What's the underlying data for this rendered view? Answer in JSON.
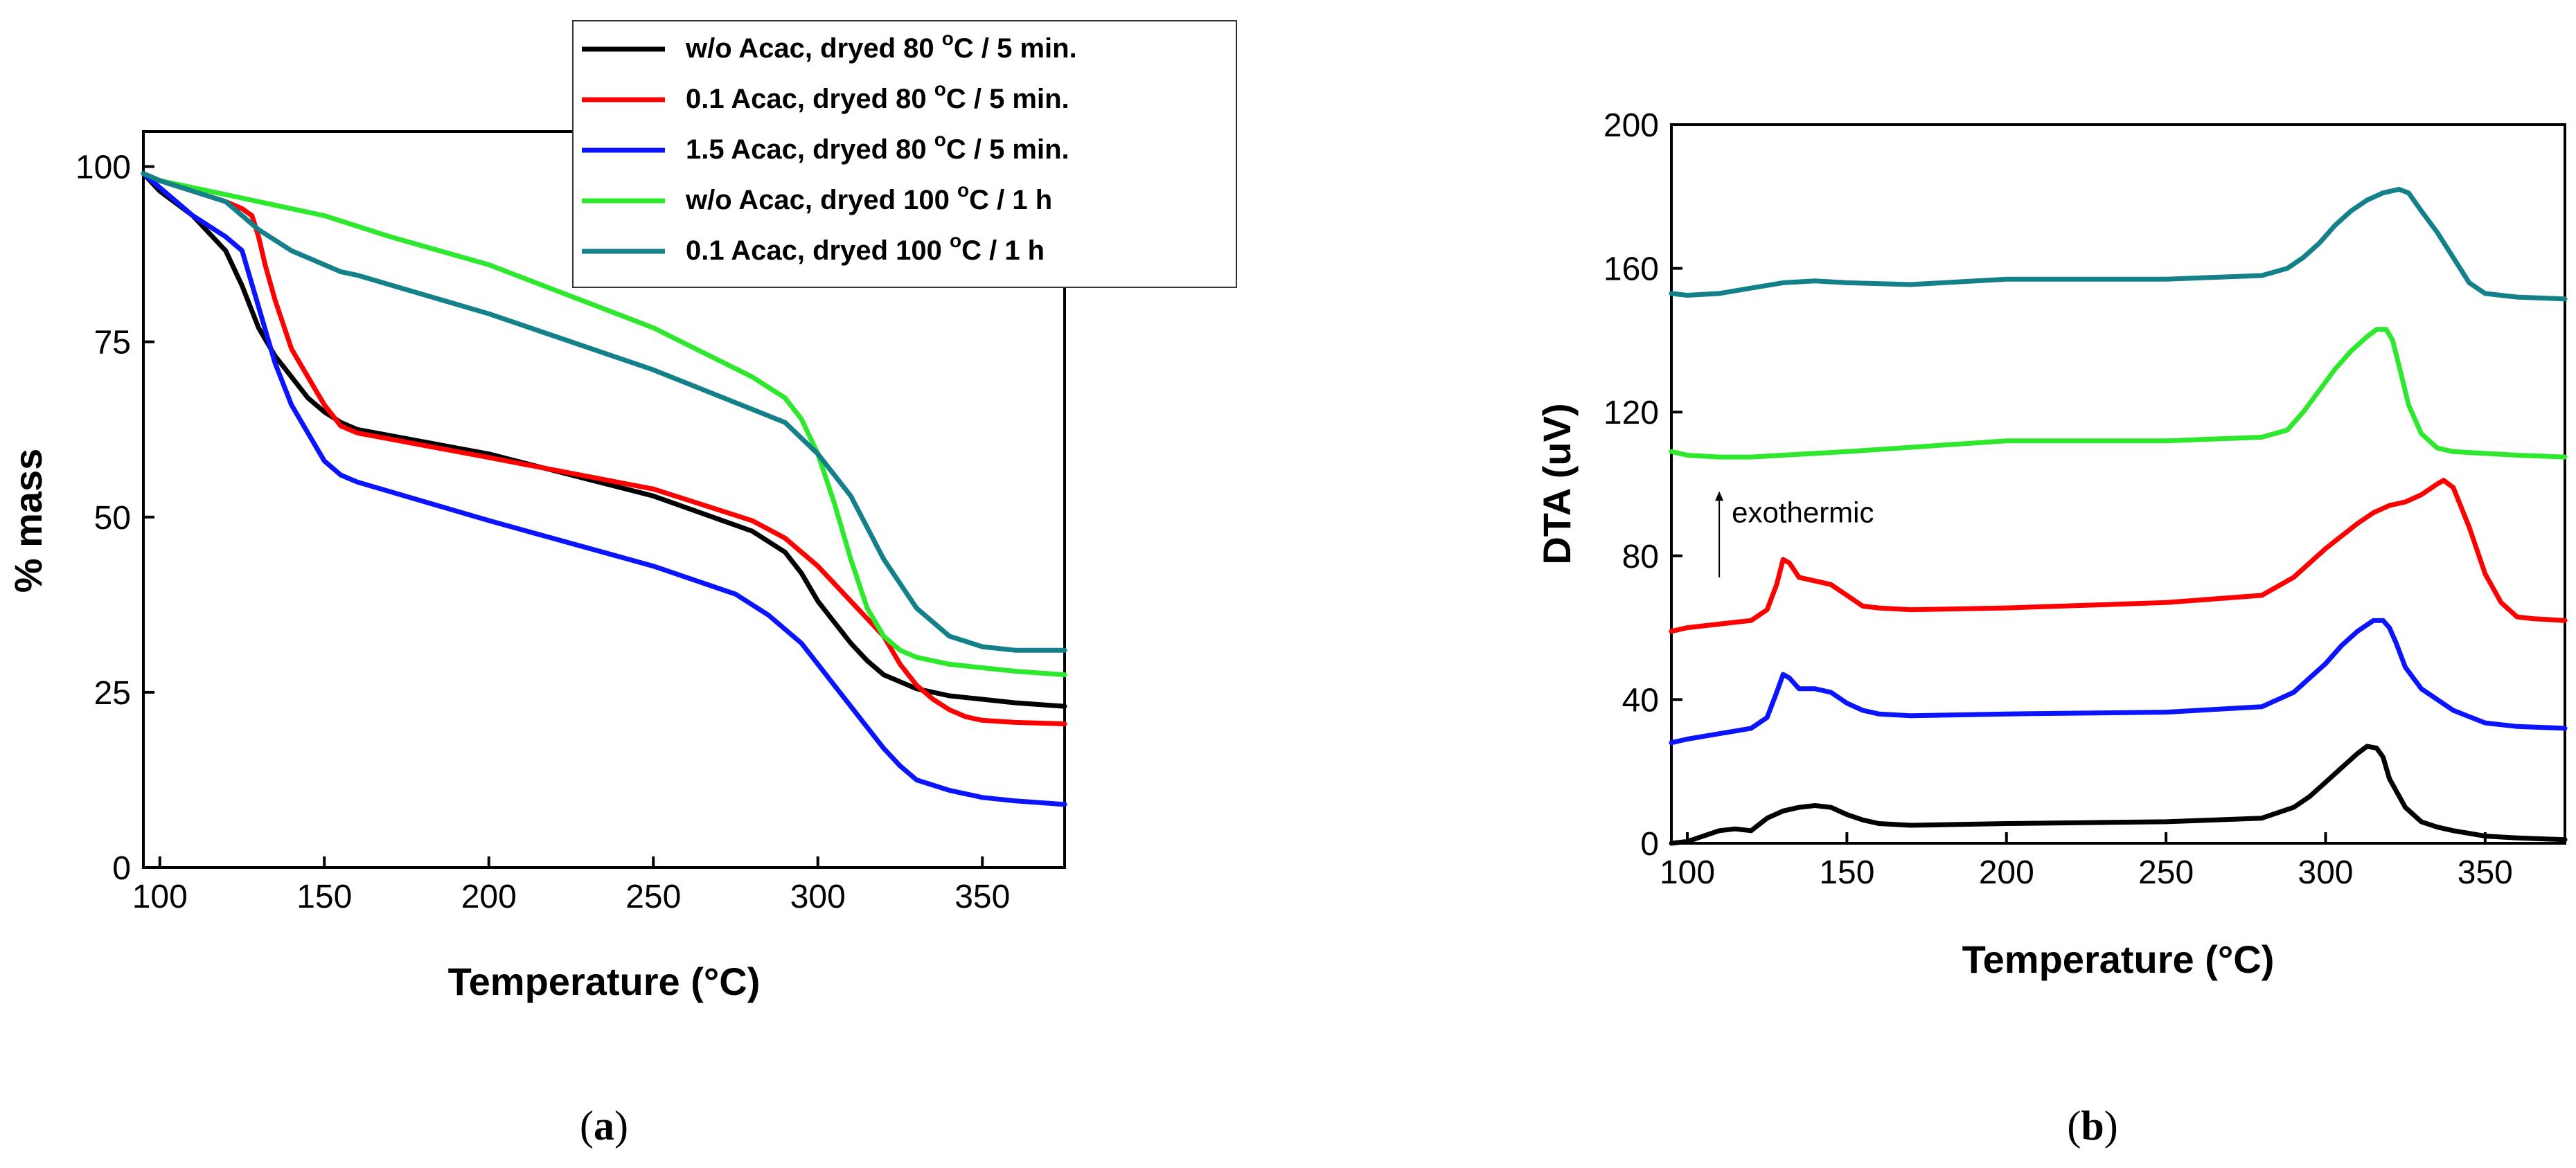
{
  "colors": {
    "black": "#000000",
    "red": "#ff0000",
    "blue": "#0a14ff",
    "green": "#2de82d",
    "teal": "#13808a"
  },
  "chart_data": [
    {
      "id": "a",
      "type": "line",
      "caption": "a",
      "xlabel": "Temperature (°C)",
      "ylabel": "% mass",
      "xlim": [
        95,
        375
      ],
      "ylim": [
        0,
        105
      ],
      "xticks": [
        100,
        150,
        200,
        250,
        300,
        350
      ],
      "yticks": [
        0,
        25,
        50,
        75,
        100
      ],
      "legend_position": "top-right",
      "series": [
        {
          "name": "w/o Acac, dryed 80 °C / 5 min.",
          "legend_main": "w/o Acac, dryed 80 ",
          "legend_sup": "o",
          "legend_tail": "C / 5 min.",
          "color_key": "black",
          "x": [
            95,
            100,
            110,
            120,
            125,
            130,
            135,
            140,
            145,
            150,
            155,
            160,
            200,
            250,
            280,
            290,
            295,
            300,
            305,
            310,
            315,
            320,
            325,
            330,
            340,
            350,
            360,
            375
          ],
          "y": [
            99,
            96.5,
            93,
            88,
            83,
            77,
            73,
            70,
            67,
            65,
            63.5,
            62.5,
            59,
            53,
            48,
            45,
            42,
            38,
            35,
            32,
            29.5,
            27.5,
            26.5,
            25.5,
            24.5,
            24,
            23.5,
            23
          ]
        },
        {
          "name": "0.1 Acac, dryed 80 °C / 5 min.",
          "legend_main": "0.1 Acac, dryed 80 ",
          "legend_sup": "o",
          "legend_tail": "C / 5 min.",
          "color_key": "red",
          "x": [
            95,
            100,
            110,
            120,
            125,
            128,
            130,
            132,
            135,
            140,
            145,
            150,
            155,
            160,
            200,
            250,
            280,
            290,
            300,
            310,
            320,
            325,
            330,
            335,
            340,
            345,
            350,
            360,
            375
          ],
          "y": [
            99,
            98,
            96.5,
            95,
            94,
            93,
            90,
            86,
            81,
            74,
            70,
            66,
            63,
            62,
            58.5,
            54,
            49.5,
            47,
            43,
            38,
            33,
            29,
            26,
            24,
            22.5,
            21.5,
            21,
            20.7,
            20.5
          ]
        },
        {
          "name": "1.5 Acac, dryed 80 °C / 5 min.",
          "legend_main": "1.5 Acac, dryed 80 ",
          "legend_sup": "o",
          "legend_tail": "C / 5 min.",
          "color_key": "blue",
          "x": [
            95,
            100,
            110,
            120,
            125,
            130,
            135,
            140,
            145,
            150,
            155,
            160,
            200,
            250,
            275,
            285,
            295,
            300,
            305,
            310,
            315,
            320,
            325,
            330,
            340,
            350,
            360,
            375
          ],
          "y": [
            99,
            97,
            93,
            90,
            88,
            80,
            72,
            66,
            62,
            58,
            56,
            55,
            49.5,
            43,
            39,
            36,
            32,
            29,
            26,
            23,
            20,
            17,
            14.5,
            12.5,
            11,
            10,
            9.5,
            9
          ]
        },
        {
          "name": "w/o Acac, dryed 100 °C / 1 h",
          "legend_main": "w/o Acac, dryed 100 ",
          "legend_sup": "o",
          "legend_tail": "C / 1 h",
          "color_key": "green",
          "x": [
            95,
            100,
            120,
            150,
            170,
            200,
            250,
            280,
            290,
            295,
            300,
            305,
            310,
            315,
            320,
            325,
            330,
            340,
            350,
            360,
            375
          ],
          "y": [
            99,
            98,
            96,
            93,
            90,
            86,
            77,
            70,
            67,
            64,
            59,
            52,
            44,
            37,
            33,
            31,
            30,
            29,
            28.5,
            28,
            27.5
          ]
        },
        {
          "name": "0.1 Acac, dryed 100 °C / 1 h",
          "legend_main": "0.1 Acac, dryed 100 ",
          "legend_sup": "o",
          "legend_tail": "C / 1 h",
          "color_key": "teal",
          "x": [
            95,
            100,
            110,
            120,
            130,
            140,
            150,
            155,
            160,
            200,
            250,
            290,
            300,
            310,
            320,
            330,
            340,
            350,
            360,
            375
          ],
          "y": [
            99,
            98,
            96.5,
            95,
            91,
            88,
            86,
            85,
            84.5,
            79,
            71,
            63.5,
            59,
            53,
            44,
            37,
            33,
            31.5,
            31,
            31
          ]
        }
      ]
    },
    {
      "id": "b",
      "type": "line",
      "caption": "b",
      "xlabel": "Temperature (°C)",
      "ylabel": "DTA (uV)",
      "xlim": [
        95,
        375
      ],
      "ylim": [
        0,
        200
      ],
      "xticks": [
        100,
        150,
        200,
        250,
        300,
        350
      ],
      "yticks": [
        0,
        40,
        80,
        120,
        160,
        200
      ],
      "annotation": "exothermic",
      "annotation_at": {
        "x": 110,
        "y": 92
      },
      "annotation_arrow": {
        "x": 110,
        "y_from": 74,
        "y_to": 98
      },
      "series": [
        {
          "name": "w/o Acac, dryed 80 °C / 5 min.",
          "color_key": "black",
          "x": [
            95,
            100,
            105,
            110,
            115,
            120,
            125,
            130,
            135,
            140,
            145,
            150,
            155,
            160,
            170,
            200,
            250,
            280,
            290,
            295,
            300,
            305,
            310,
            313,
            316,
            318,
            320,
            325,
            330,
            335,
            340,
            350,
            360,
            375
          ],
          "y": [
            0,
            0.5,
            2,
            3.5,
            4,
            3.5,
            7,
            9,
            10,
            10.5,
            10,
            8,
            6.5,
            5.5,
            5,
            5.5,
            6,
            7,
            10,
            13,
            17,
            21,
            25,
            27,
            26.5,
            24,
            18,
            10,
            6,
            4.5,
            3.5,
            2,
            1.5,
            1
          ]
        },
        {
          "name": "1.5 Acac, dryed 80 °C / 5 min.",
          "color_key": "blue",
          "x": [
            95,
            100,
            110,
            120,
            125,
            128,
            130,
            132,
            135,
            140,
            145,
            150,
            155,
            160,
            170,
            200,
            250,
            280,
            290,
            300,
            305,
            310,
            315,
            318,
            320,
            322,
            325,
            330,
            340,
            350,
            360,
            375
          ],
          "y": [
            28,
            29,
            30.5,
            32,
            35,
            42,
            47,
            46,
            43,
            43,
            42,
            39,
            37,
            36,
            35.5,
            36,
            36.5,
            38,
            42,
            50,
            55,
            59,
            62,
            62,
            60,
            56,
            49,
            43,
            37,
            33.5,
            32.5,
            32
          ]
        },
        {
          "name": "0.1 Acac, dryed 80 °C / 5 min.",
          "color_key": "red",
          "x": [
            95,
            100,
            110,
            120,
            125,
            128,
            130,
            132,
            135,
            140,
            145,
            150,
            155,
            160,
            170,
            200,
            250,
            280,
            290,
            300,
            310,
            315,
            320,
            325,
            330,
            335,
            337,
            340,
            345,
            350,
            355,
            360,
            365,
            375
          ],
          "y": [
            59,
            60,
            61,
            62,
            65,
            72,
            79,
            78,
            74,
            73,
            72,
            69,
            66,
            65.5,
            65,
            65.5,
            67,
            69,
            74,
            82,
            89,
            92,
            94,
            95,
            97,
            100,
            101,
            99,
            88,
            75,
            67,
            63,
            62.5,
            62
          ]
        },
        {
          "name": "w/o Acac, dryed 100 °C / 1 h",
          "color_key": "green",
          "x": [
            95,
            100,
            110,
            120,
            150,
            200,
            250,
            280,
            288,
            293,
            298,
            303,
            308,
            313,
            316,
            319,
            321,
            323,
            326,
            330,
            335,
            340,
            350,
            360,
            375
          ],
          "y": [
            109,
            108,
            107.5,
            107.5,
            109,
            112,
            112,
            113,
            115,
            120,
            126,
            132,
            137,
            141,
            143,
            143,
            140,
            133,
            122,
            114,
            110,
            109,
            108.5,
            108,
            107.5
          ]
        },
        {
          "name": "0.1 Acac, dryed 100 °C / 1 h",
          "color_key": "teal",
          "x": [
            95,
            100,
            110,
            120,
            130,
            140,
            150,
            170,
            200,
            250,
            280,
            288,
            293,
            298,
            303,
            308,
            313,
            318,
            323,
            326,
            330,
            335,
            340,
            345,
            350,
            360,
            375
          ],
          "y": [
            153,
            152.5,
            153,
            154.5,
            156,
            156.5,
            156,
            155.5,
            157,
            157,
            158,
            160,
            163,
            167,
            172,
            176,
            179,
            181,
            182,
            181,
            176,
            170,
            163,
            156,
            153,
            152,
            151.5
          ]
        }
      ]
    }
  ]
}
